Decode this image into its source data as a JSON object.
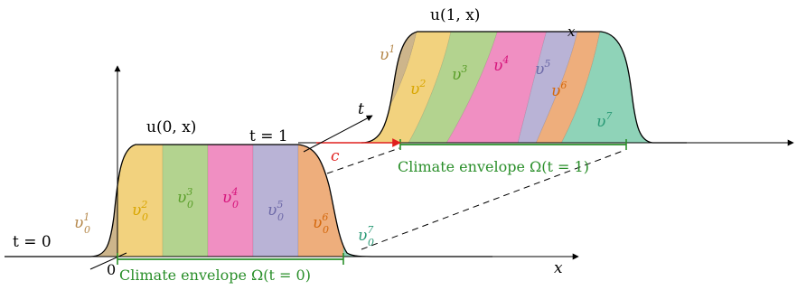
{
  "colors": {
    "v1": "#cdb58b",
    "v2": "#f2d27e",
    "v3": "#b3d38f",
    "v4": "#f08fc2",
    "v5": "#b9b3d6",
    "v6": "#eeae7c",
    "v7": "#8fd3b8",
    "label_v1": "#b5884b",
    "label_v2": "#d9a600",
    "label_v3": "#5a9e2a",
    "label_v4": "#d6157c",
    "label_v5": "#6e6aa8",
    "label_v6": "#d4680c",
    "label_v7": "#2a9a76",
    "envelope": "#2a8f2a",
    "speed": "#e0201e"
  },
  "labels": {
    "u0": "u(0, x)",
    "u1": "u(1, x)",
    "t0": "t = 0",
    "t1": "t = 1",
    "t_axis": "t",
    "x_axis": "x",
    "origin": "0",
    "speed": "c",
    "envelope0": "Climate envelope Ω(t = 0)",
    "envelope1": "Climate envelope Ω(t = 1)"
  },
  "species_t0": [
    {
      "base": "υ",
      "sub": "0",
      "sup": "1"
    },
    {
      "base": "υ",
      "sub": "0",
      "sup": "2"
    },
    {
      "base": "υ",
      "sub": "0",
      "sup": "3"
    },
    {
      "base": "υ",
      "sub": "0",
      "sup": "4"
    },
    {
      "base": "υ",
      "sub": "0",
      "sup": "5"
    },
    {
      "base": "υ",
      "sub": "0",
      "sup": "6"
    },
    {
      "base": "υ",
      "sub": "0",
      "sup": "7"
    }
  ],
  "species_t1": [
    {
      "base": "υ",
      "sup": "1"
    },
    {
      "base": "υ",
      "sup": "2"
    },
    {
      "base": "υ",
      "sup": "3"
    },
    {
      "base": "υ",
      "sup": "4"
    },
    {
      "base": "υ",
      "sup": "5"
    },
    {
      "base": "υ",
      "sup": "6"
    },
    {
      "base": "υ",
      "sup": "7"
    }
  ]
}
